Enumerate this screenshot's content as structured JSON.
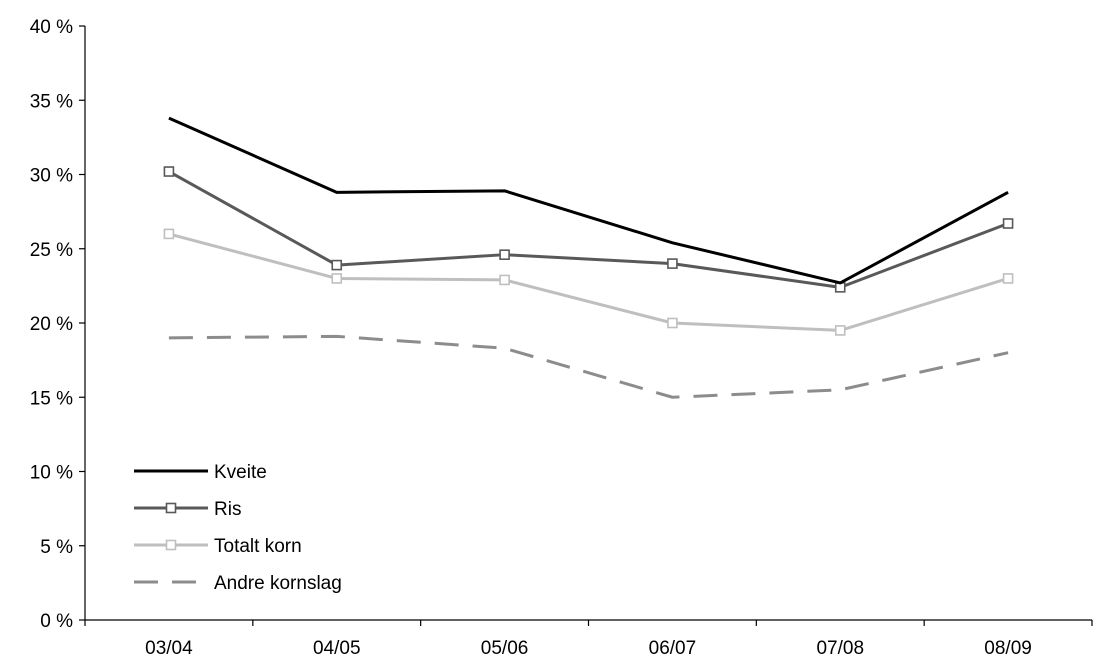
{
  "chart_data": {
    "type": "line",
    "categories": [
      "03/04",
      "04/05",
      "05/06",
      "06/07",
      "07/08",
      "08/09"
    ],
    "y_ticks": [
      "0 %",
      "5 %",
      "10 %",
      "15 %",
      "20 %",
      "25 %",
      "30 %",
      "35 %",
      "40 %"
    ],
    "ylim": [
      0,
      40
    ],
    "y_unit": "%",
    "grid": false,
    "legend_position": "bottom-left",
    "series": [
      {
        "name": "Kveite",
        "values": [
          33.8,
          28.8,
          28.9,
          25.4,
          22.7,
          28.8
        ],
        "color": "#000000",
        "style": "solid",
        "marker": "none"
      },
      {
        "name": "Ris",
        "values": [
          30.2,
          23.9,
          24.6,
          24.0,
          22.4,
          26.7
        ],
        "color": "#595959",
        "style": "solid",
        "marker": "square"
      },
      {
        "name": "Totalt korn",
        "values": [
          26.0,
          23.0,
          22.9,
          20.0,
          19.5,
          23.0
        ],
        "color": "#bfbfbf",
        "style": "solid",
        "marker": "square"
      },
      {
        "name": "Andre kornslag",
        "values": [
          19.0,
          19.1,
          18.3,
          15.0,
          15.5,
          18.0
        ],
        "color": "#8c8c8c",
        "style": "dashed",
        "marker": "none"
      }
    ]
  }
}
